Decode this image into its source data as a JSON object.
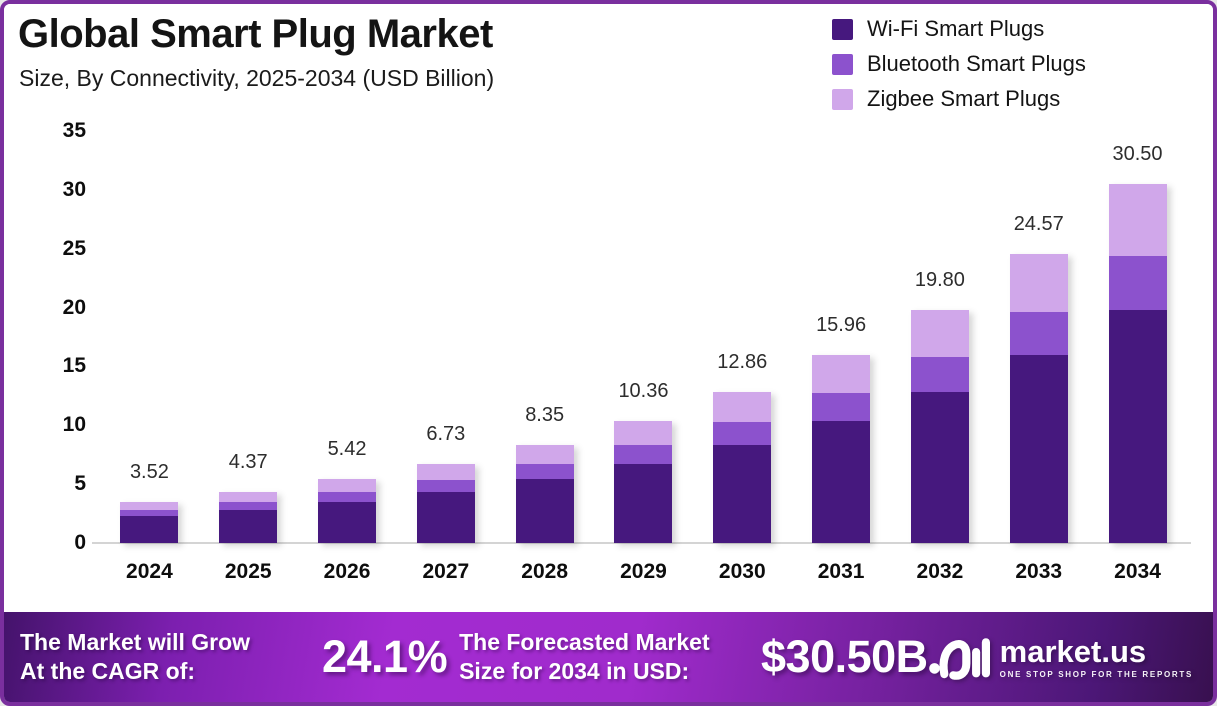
{
  "card": {
    "border_color": "#7A2F9E",
    "background": "#FFFFFF"
  },
  "header": {
    "title": "Global Smart Plug Market",
    "subtitle": "Size, By Connectivity, 2025-2034 (USD Billion)"
  },
  "legend": [
    {
      "label": "Wi-Fi Smart Plugs",
      "color": "#46187E"
    },
    {
      "label": "Bluetooth Smart Plugs",
      "color": "#8C52CD"
    },
    {
      "label": "Zigbee Smart Plugs",
      "color": "#D0A7EA"
    }
  ],
  "chart_data": {
    "type": "bar",
    "stacked": true,
    "title": "Global Smart Plug Market",
    "subtitle": "Size, By Connectivity, 2025-2034 (USD Billion)",
    "xlabel": "",
    "ylabel": "USD Billion",
    "categories": [
      "2024",
      "2025",
      "2026",
      "2027",
      "2028",
      "2029",
      "2030",
      "2031",
      "2032",
      "2033",
      "2034"
    ],
    "totals": [
      3.52,
      4.37,
      5.42,
      6.73,
      8.35,
      10.36,
      12.86,
      15.96,
      19.8,
      24.57,
      30.5
    ],
    "total_labels": [
      "3.52",
      "4.37",
      "5.42",
      "6.73",
      "8.35",
      "10.36",
      "12.86",
      "15.96",
      "19.80",
      "24.57",
      "30.50"
    ],
    "series": [
      {
        "name": "Wi-Fi Smart Plugs",
        "color": "#46187E",
        "values": [
          2.29,
          2.84,
          3.52,
          4.37,
          5.43,
          6.73,
          8.36,
          10.37,
          12.87,
          15.97,
          19.83
        ]
      },
      {
        "name": "Bluetooth Smart Plugs",
        "color": "#8C52CD",
        "values": [
          0.53,
          0.66,
          0.81,
          1.01,
          1.25,
          1.56,
          1.93,
          2.4,
          2.97,
          3.69,
          4.57
        ]
      },
      {
        "name": "Zigbee Smart Plugs",
        "color": "#D0A7EA",
        "values": [
          0.7,
          0.87,
          1.09,
          1.35,
          1.67,
          2.07,
          2.57,
          3.19,
          3.96,
          4.91,
          6.1
        ]
      }
    ],
    "series_values_note": "segment values estimated from bar pixel heights; only stack totals are labeled on chart",
    "ylim": [
      0,
      35
    ],
    "yticks": [
      0,
      5,
      10,
      15,
      20,
      25,
      30,
      35
    ],
    "grid": false,
    "legend_position": "top-right"
  },
  "footer": {
    "cagr_label_line1": "The Market will Grow",
    "cagr_label_line2": "At the CAGR of:",
    "cagr_value": "24.1%",
    "forecast_label_line1": "The Forecasted Market",
    "forecast_label_line2": "Size for 2034 in USD:",
    "forecast_value": "$30.50B",
    "brand": "market.us",
    "tagline": "ONE STOP SHOP FOR THE REPORTS",
    "gradient_colors": [
      "#44136B",
      "#A32BD1",
      "#38104F"
    ]
  }
}
